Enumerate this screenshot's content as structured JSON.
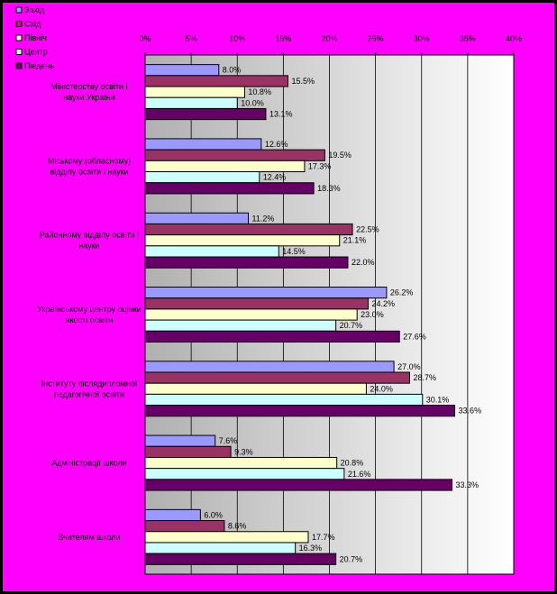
{
  "chart_data": {
    "type": "bar",
    "orientation": "horizontal",
    "title": "",
    "xlabel": "",
    "ylabel": "",
    "xlim": [
      0,
      40
    ],
    "tick_values": [
      0,
      5,
      10,
      15,
      20,
      25,
      30,
      35,
      40
    ],
    "tick_labels": [
      "0%",
      "5%",
      "10%",
      "15%",
      "20%",
      "25%",
      "30%",
      "35%",
      "40%"
    ],
    "grid": true,
    "legend_position": "top-left",
    "categories": [
      "Міністерству освіти і науки України",
      "Міському (обласному) відділу освіти і науки",
      "Районному відділу освіти і науки",
      "Українському центру оцінки якості освіти",
      "Інституту післядипломної педагогічної освіти",
      "Адміністрації школи",
      "Вчителям школи"
    ],
    "series": [
      {
        "name": "Захід",
        "color": "#9999FF",
        "values": [
          8.0,
          12.6,
          11.2,
          26.2,
          27.0,
          7.6,
          6.0
        ]
      },
      {
        "name": "Схід",
        "color": "#993366",
        "values": [
          15.5,
          19.5,
          22.5,
          24.2,
          28.7,
          9.3,
          8.6
        ]
      },
      {
        "name": "Північ",
        "color": "#FFFFCC",
        "values": [
          10.8,
          17.3,
          21.1,
          23.0,
          24.0,
          20.8,
          17.7
        ]
      },
      {
        "name": "Центр",
        "color": "#CCFFFF",
        "values": [
          10.0,
          12.4,
          14.5,
          20.7,
          30.1,
          21.6,
          16.3
        ]
      },
      {
        "name": "Південь",
        "color": "#660066",
        "values": [
          13.1,
          18.3,
          22.0,
          27.6,
          33.6,
          33.3,
          20.7
        ]
      }
    ],
    "value_labels": [
      [
        "8.0%",
        "12.6%",
        "11.2%",
        "26.2%",
        "27.0%",
        "7.6%",
        "6.0%"
      ],
      [
        "15.5%",
        "19.5%",
        "22.5%",
        "24.2%",
        "28.7%",
        "9.3%",
        "8.6%"
      ],
      [
        "10.8%",
        "17.3%",
        "21.1%",
        "23.0%",
        "24.0%",
        "20.8%",
        "17.7%"
      ],
      [
        "10.0%",
        "12.4%",
        "14.5%",
        "20.7%",
        "30.1%",
        "21.6%",
        "16.3%"
      ],
      [
        "13.1%",
        "18.3%",
        "22.0%",
        "27.6%",
        "33.6%",
        "33.3%",
        "20.7%"
      ]
    ]
  },
  "colors": {
    "background": "#FF00FF",
    "border": "#000000"
  }
}
